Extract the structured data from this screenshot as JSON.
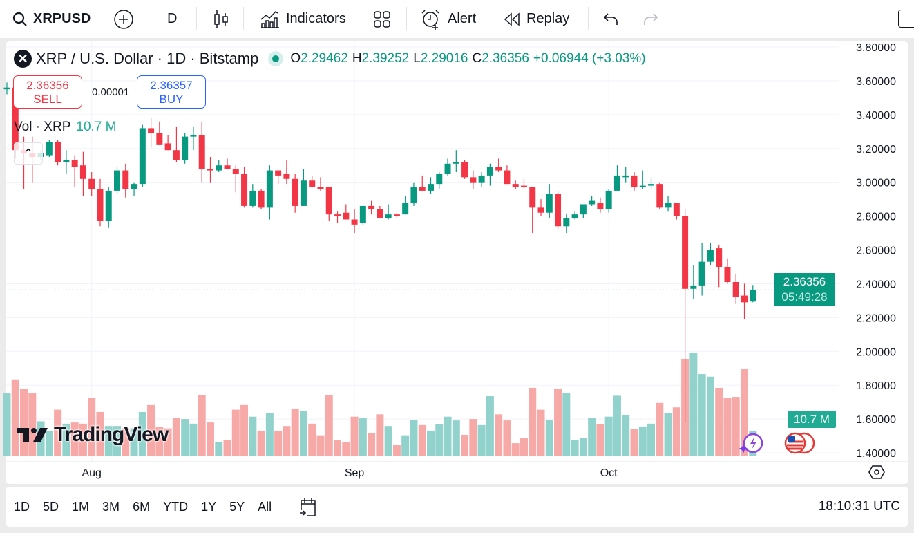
{
  "toolbar": {
    "symbol": "XRPUSD",
    "interval": "D",
    "indicators_label": "Indicators",
    "alert_label": "Alert",
    "replay_label": "Replay"
  },
  "legend": {
    "title": "XRP / U.S. Dollar · 1D · Bitstamp",
    "open_label": "O",
    "open": "2.29462",
    "high_label": "H",
    "high": "2.39252",
    "low_label": "L",
    "low": "2.29016",
    "close_label": "C",
    "close": "2.36356",
    "change": "+0.06944 (+3.03%)",
    "sell_price": "2.36356",
    "sell_label": "SELL",
    "spread": "0.00001",
    "buy_price": "2.36357",
    "buy_label": "BUY",
    "volume_title": "Vol · XRP",
    "volume_value": "10.7 M"
  },
  "price_tag": {
    "price": "2.36356",
    "countdown": "05:49:28"
  },
  "volume_tag": "10.7 M",
  "watermark": "TradingView",
  "bottom": {
    "ranges": [
      "1D",
      "5D",
      "1M",
      "3M",
      "6M",
      "YTD",
      "1Y",
      "5Y",
      "All"
    ],
    "clock": "18:10:31 UTC"
  },
  "colors": {
    "up": "#089981",
    "down": "#f23645",
    "vol_up": "#92d2cc",
    "vol_down": "#f7a9a7"
  },
  "chart_data": {
    "type": "candlestick",
    "y_ticks": [
      "3.80000",
      "3.60000",
      "3.40000",
      "3.20000",
      "3.00000",
      "2.80000",
      "2.60000",
      "2.40000",
      "2.20000",
      "2.00000",
      "1.80000",
      "1.60000",
      "1.40000"
    ],
    "ylim": [
      1.4,
      3.8
    ],
    "x_ticks": [
      {
        "label": "Aug",
        "date": "Aug 1"
      },
      {
        "label": "Sep",
        "date": "Sep 1"
      },
      {
        "label": "Oct",
        "date": "Oct 1"
      }
    ],
    "volume_unit": "M",
    "candles": [
      [
        "Jul 22",
        3.55,
        3.59,
        3.52,
        3.56,
        27
      ],
      [
        "Jul 23",
        3.56,
        3.58,
        3.14,
        3.19,
        33
      ],
      [
        "Jul 24",
        3.19,
        3.27,
        2.96,
        3.17,
        29
      ],
      [
        "Jul 25",
        3.17,
        3.27,
        3.0,
        3.15,
        27
      ],
      [
        "Jul 26",
        3.15,
        3.19,
        3.13,
        3.17,
        15
      ],
      [
        "Jul 27",
        3.16,
        3.25,
        3.15,
        3.24,
        11
      ],
      [
        "Jul 28",
        3.24,
        3.25,
        3.1,
        3.12,
        20
      ],
      [
        "Jul 29",
        3.12,
        3.19,
        3.05,
        3.13,
        14
      ],
      [
        "Jul 30",
        3.13,
        3.16,
        2.97,
        3.09,
        14.5
      ],
      [
        "Jul 31",
        3.1,
        3.18,
        2.92,
        3.02,
        14
      ],
      [
        "Aug 1",
        3.02,
        3.06,
        2.92,
        2.96,
        25
      ],
      [
        "Aug 2",
        2.96,
        3.02,
        2.74,
        2.77,
        19
      ],
      [
        "Aug 3",
        2.77,
        2.97,
        2.73,
        2.95,
        13
      ],
      [
        "Aug 4",
        2.95,
        3.09,
        2.93,
        3.07,
        13
      ],
      [
        "Aug 5",
        3.07,
        3.11,
        2.91,
        2.96,
        12
      ],
      [
        "Aug 6",
        2.96,
        3.0,
        2.92,
        2.99,
        12
      ],
      [
        "Aug 7",
        2.99,
        3.34,
        2.97,
        3.32,
        19
      ],
      [
        "Aug 8",
        3.32,
        3.38,
        3.21,
        3.29,
        22
      ],
      [
        "Aug 9",
        3.29,
        3.36,
        3.22,
        3.22,
        12.5
      ],
      [
        "Aug 10",
        3.23,
        3.28,
        3.19,
        3.19,
        12
      ],
      [
        "Aug 11",
        3.19,
        3.33,
        3.12,
        3.13,
        16.6
      ],
      [
        "Aug 12",
        3.13,
        3.29,
        3.11,
        3.27,
        16
      ],
      [
        "Aug 13",
        3.27,
        3.33,
        3.19,
        3.28,
        14
      ],
      [
        "Aug 14",
        3.28,
        3.36,
        3.0,
        3.08,
        26.4
      ],
      [
        "Aug 15",
        3.08,
        3.15,
        3.0,
        3.07,
        14.5
      ],
      [
        "Aug 16",
        3.07,
        3.13,
        3.06,
        3.1,
        6
      ],
      [
        "Aug 17",
        3.1,
        3.14,
        3.08,
        3.08,
        7
      ],
      [
        "Aug 18",
        3.08,
        3.1,
        2.94,
        3.05,
        20
      ],
      [
        "Aug 19",
        3.05,
        3.09,
        2.85,
        2.86,
        22
      ],
      [
        "Aug 20",
        2.86,
        2.99,
        2.85,
        2.95,
        17
      ],
      [
        "Aug 21",
        2.95,
        2.96,
        2.84,
        2.85,
        11
      ],
      [
        "Aug 22",
        2.85,
        3.1,
        2.78,
        3.07,
        18.4
      ],
      [
        "Aug 23",
        3.07,
        3.07,
        2.99,
        3.04,
        11
      ],
      [
        "Aug 24",
        3.05,
        3.13,
        2.99,
        3.02,
        13
      ],
      [
        "Aug 25",
        3.02,
        3.05,
        2.82,
        2.86,
        20.5
      ],
      [
        "Aug 26",
        2.86,
        3.08,
        2.86,
        3.01,
        19.3
      ],
      [
        "Aug 27",
        3.01,
        3.04,
        2.97,
        2.97,
        14
      ],
      [
        "Aug 28",
        2.97,
        3.03,
        2.95,
        2.96,
        9
      ],
      [
        "Aug 29",
        2.97,
        2.97,
        2.77,
        2.81,
        26.4
      ],
      [
        "Aug 30",
        2.81,
        2.83,
        2.76,
        2.8,
        7
      ],
      [
        "Aug 31",
        2.82,
        2.87,
        2.78,
        2.78,
        6
      ],
      [
        "Sep 1",
        2.78,
        2.84,
        2.7,
        2.75,
        17
      ],
      [
        "Sep 2",
        2.76,
        2.86,
        2.75,
        2.86,
        16.3
      ],
      [
        "Sep 3",
        2.86,
        2.89,
        2.81,
        2.84,
        10
      ],
      [
        "Sep 4",
        2.84,
        2.86,
        2.79,
        2.79,
        18
      ],
      [
        "Sep 5",
        2.79,
        2.87,
        2.78,
        2.81,
        13
      ],
      [
        "Sep 6",
        2.81,
        2.82,
        2.79,
        2.8,
        5
      ],
      [
        "Sep 7",
        2.81,
        2.92,
        2.81,
        2.88,
        9
      ],
      [
        "Sep 8",
        2.88,
        3.0,
        2.86,
        2.97,
        15.7
      ],
      [
        "Sep 9",
        2.97,
        3.04,
        2.95,
        2.95,
        13.4
      ],
      [
        "Sep 10",
        2.95,
        3.03,
        2.93,
        2.99,
        11
      ],
      [
        "Sep 11",
        2.99,
        3.06,
        2.96,
        3.05,
        13.7
      ],
      [
        "Sep 12",
        3.05,
        3.14,
        3.04,
        3.11,
        17
      ],
      [
        "Sep 13",
        3.11,
        3.19,
        3.06,
        3.12,
        15.4
      ],
      [
        "Sep 14",
        3.12,
        3.13,
        3.02,
        3.03,
        9.2
      ],
      [
        "Sep 15",
        3.03,
        3.07,
        2.96,
        3.0,
        16
      ],
      [
        "Sep 16",
        3.0,
        3.06,
        2.97,
        3.04,
        13.4
      ],
      [
        "Sep 17",
        3.04,
        3.11,
        2.98,
        3.09,
        25.8
      ],
      [
        "Sep 18",
        3.09,
        3.14,
        3.06,
        3.07,
        18
      ],
      [
        "Sep 19",
        3.07,
        3.1,
        2.99,
        2.99,
        15.4
      ],
      [
        "Sep 20",
        2.99,
        3.01,
        2.96,
        2.97,
        5.6
      ],
      [
        "Sep 21",
        2.98,
        3.02,
        2.96,
        2.97,
        7.7
      ],
      [
        "Sep 22",
        2.97,
        2.97,
        2.7,
        2.85,
        29.4
      ],
      [
        "Sep 23",
        2.85,
        2.9,
        2.8,
        2.82,
        20
      ],
      [
        "Sep 24",
        2.82,
        2.99,
        2.79,
        2.93,
        15.7
      ],
      [
        "Sep 25",
        2.93,
        2.95,
        2.72,
        2.74,
        28.8
      ],
      [
        "Sep 26",
        2.74,
        2.81,
        2.7,
        2.79,
        27
      ],
      [
        "Sep 27",
        2.79,
        2.83,
        2.78,
        2.81,
        7
      ],
      [
        "Sep 28",
        2.81,
        2.87,
        2.79,
        2.87,
        8
      ],
      [
        "Sep 29",
        2.87,
        2.92,
        2.86,
        2.89,
        16.6
      ],
      [
        "Sep 30",
        2.88,
        2.91,
        2.82,
        2.84,
        13.7
      ],
      [
        "Oct 1",
        2.84,
        2.96,
        2.82,
        2.95,
        17
      ],
      [
        "Oct 2",
        2.95,
        3.1,
        2.95,
        3.04,
        26
      ],
      [
        "Oct 3",
        3.03,
        3.09,
        3.0,
        3.04,
        17.8
      ],
      [
        "Oct 4",
        3.04,
        3.06,
        2.95,
        2.97,
        11.6
      ],
      [
        "Oct 5",
        2.97,
        3.07,
        2.96,
        2.98,
        12.8
      ],
      [
        "Oct 6",
        2.98,
        3.03,
        2.96,
        2.99,
        14
      ],
      [
        "Oct 7",
        2.99,
        3.0,
        2.84,
        2.85,
        22.9
      ],
      [
        "Oct 8",
        2.85,
        2.92,
        2.83,
        2.88,
        18.7
      ],
      [
        "Oct 9",
        2.88,
        2.88,
        2.78,
        2.8,
        21
      ],
      [
        "Oct 10",
        2.8,
        2.84,
        1.58,
        2.37,
        41.6
      ],
      [
        "Oct 11",
        2.37,
        2.51,
        2.31,
        2.39,
        44.3
      ],
      [
        "Oct 12",
        2.39,
        2.64,
        2.33,
        2.53,
        35.3
      ],
      [
        "Oct 13",
        2.53,
        2.64,
        2.51,
        2.6,
        34.2
      ],
      [
        "Oct 14",
        2.61,
        2.63,
        2.38,
        2.5,
        29.4
      ],
      [
        "Oct 15",
        2.5,
        2.55,
        2.4,
        2.41,
        25
      ],
      [
        "Oct 16",
        2.41,
        2.46,
        2.28,
        2.32,
        25.5
      ],
      [
        "Oct 17",
        2.33,
        2.4,
        2.19,
        2.29,
        37.4
      ],
      [
        "Oct 18",
        2.29462,
        2.39252,
        2.29016,
        2.36356,
        10.7
      ]
    ],
    "last_price": 2.36356
  }
}
